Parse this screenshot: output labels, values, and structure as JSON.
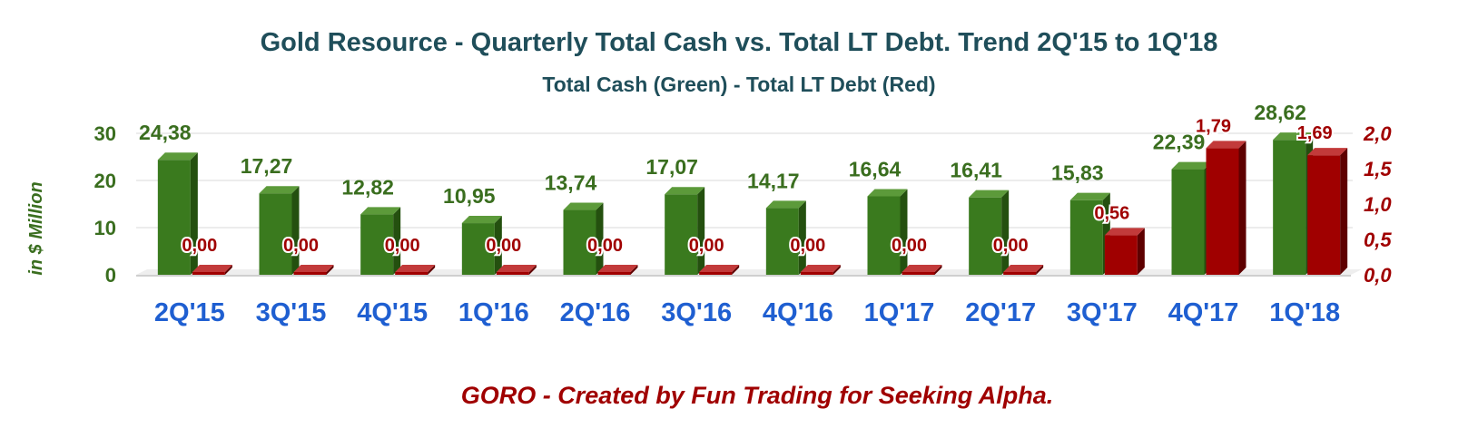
{
  "chart_data": {
    "type": "bar",
    "title": "Gold Resource - Quarterly Total Cash vs. Total LT Debt. Trend 2Q'15 to 1Q'18",
    "subtitle": "Total Cash (Green) - Total LT Debt (Red)",
    "ylabel": "in $ Million",
    "footer": "GORO - Created by Fun Trading for Seeking Alpha.",
    "categories": [
      "2Q'15",
      "3Q'15",
      "4Q'15",
      "1Q'16",
      "2Q'16",
      "3Q'16",
      "4Q'16",
      "1Q'17",
      "2Q'17",
      "3Q'17",
      "4Q'17",
      "1Q'18"
    ],
    "series": [
      {
        "name": "Total Cash",
        "axis": "left",
        "color": "#3a7a1e",
        "values": [
          24.38,
          17.27,
          12.82,
          10.95,
          13.74,
          17.07,
          14.17,
          16.64,
          16.41,
          15.83,
          22.39,
          28.62
        ],
        "labels": [
          "24,38",
          "17,27",
          "12,82",
          "10,95",
          "13,74",
          "17,07",
          "14,17",
          "16,64",
          "16,41",
          "15,83",
          "22,39",
          "28,62"
        ]
      },
      {
        "name": "Total LT Debt",
        "axis": "right",
        "color": "#a00000",
        "values": [
          0.0,
          0.0,
          0.0,
          0.0,
          0.0,
          0.0,
          0.0,
          0.0,
          0.0,
          0.56,
          1.79,
          1.69
        ],
        "labels": [
          "0,00",
          "0,00",
          "0,00",
          "0,00",
          "0,00",
          "0,00",
          "0,00",
          "0,00",
          "0,00",
          "0,56",
          "1,79",
          "1,69"
        ]
      }
    ],
    "left_axis": {
      "ylim": [
        0,
        30
      ],
      "ticks": [
        "0",
        "10",
        "20",
        "30"
      ],
      "tick_values": [
        0,
        10,
        20,
        30
      ]
    },
    "right_axis": {
      "ylim": [
        0,
        2.0
      ],
      "ticks": [
        "0,0",
        "0,5",
        "1,0",
        "1,5",
        "2,0"
      ],
      "tick_values": [
        0,
        0.5,
        1.0,
        1.5,
        2.0
      ]
    },
    "grid": true,
    "legend": "none"
  }
}
